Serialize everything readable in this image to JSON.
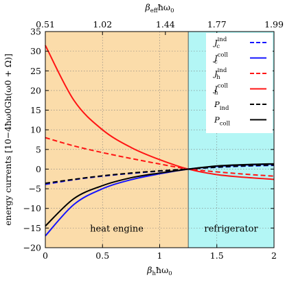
{
  "chart_data": {
    "type": "line",
    "xlabel": "βhħω0",
    "x2label": "βeffħω0",
    "ylabel": "energy currents [10−4ħω0Gh(ω0 + Ω)]",
    "xlim": [
      0,
      2
    ],
    "ylim": [
      -20,
      35
    ],
    "xticks": [
      0,
      0.5,
      1,
      1.5,
      2
    ],
    "xticklabels": [
      "0",
      "0.5",
      "1",
      "1.5",
      "2"
    ],
    "yticks": [
      -20,
      -15,
      -10,
      -5,
      0,
      5,
      10,
      15,
      20,
      25,
      30,
      35
    ],
    "yticklabels": [
      "−20",
      "−15",
      "−10",
      "−5",
      "0",
      "5",
      "10",
      "15",
      "20",
      "25",
      "30",
      "35"
    ],
    "x2ticks": [
      0,
      0.5,
      1.05,
      1.5,
      2
    ],
    "x2ticklabels": [
      "0.51",
      "1.02",
      "1.44",
      "1.77",
      "1.99"
    ],
    "grid": true,
    "legend_position": "top-right",
    "regions": [
      {
        "label": "heat engine",
        "x": [
          0,
          1.25
        ],
        "color": "#fbdcaa"
      },
      {
        "label": "refrigerator",
        "x": [
          1.25,
          2
        ],
        "color": "#b3f6f5"
      }
    ],
    "series": [
      {
        "name": "Jcind",
        "color": "#1414ff",
        "dash": "dashed",
        "x": [
          0,
          0.25,
          0.5,
          0.75,
          1.0,
          1.25,
          1.5,
          1.75,
          2.0
        ],
        "y": [
          -3.9,
          -2.7,
          -1.8,
          -1.1,
          -0.5,
          0,
          0.45,
          0.75,
          0.95
        ]
      },
      {
        "name": "Jccoll",
        "color": "#1414ff",
        "dash": "solid",
        "x": [
          0,
          0.25,
          0.5,
          0.75,
          1.0,
          1.25,
          1.5,
          1.75,
          2.0
        ],
        "y": [
          -17.0,
          -9.0,
          -5.0,
          -2.7,
          -1.2,
          0,
          0.7,
          1.05,
          1.25
        ]
      },
      {
        "name": "Jhind",
        "color": "#ff1414",
        "dash": "dashed",
        "x": [
          0,
          0.25,
          0.5,
          0.75,
          1.0,
          1.25,
          1.5,
          1.75,
          2.0
        ],
        "y": [
          8.0,
          5.9,
          4.2,
          2.7,
          1.3,
          0,
          -0.7,
          -1.3,
          -1.8
        ]
      },
      {
        "name": "Jhcoll",
        "color": "#ff1414",
        "dash": "solid",
        "x": [
          0,
          0.25,
          0.5,
          0.75,
          1.0,
          1.25,
          1.5,
          1.75,
          2.0
        ],
        "y": [
          31.5,
          17.5,
          10.0,
          5.5,
          2.4,
          0,
          -1.4,
          -2.1,
          -2.6
        ]
      },
      {
        "name": "Pind",
        "color": "#000000",
        "dash": "dashed",
        "x": [
          0,
          0.25,
          0.5,
          0.75,
          1.0,
          1.25,
          1.5,
          1.75,
          2.0
        ],
        "y": [
          -3.6,
          -2.6,
          -1.7,
          -1.0,
          -0.45,
          0,
          0.5,
          0.85,
          1.05
        ]
      },
      {
        "name": "Pcoll",
        "color": "#000000",
        "dash": "solid",
        "x": [
          0,
          0.25,
          0.5,
          0.75,
          1.0,
          1.25,
          1.5,
          1.75,
          2.0
        ],
        "y": [
          -14.5,
          -7.5,
          -4.2,
          -2.2,
          -1.0,
          0,
          0.8,
          1.15,
          1.35
        ]
      }
    ],
    "legend": [
      {
        "series": "Jcind",
        "symbol": "J",
        "sub": "c",
        "sup": "ind"
      },
      {
        "series": "Jccoll",
        "symbol": "J",
        "sub": "c",
        "sup": "coll"
      },
      {
        "series": "Jhind",
        "symbol": "J",
        "sub": "h",
        "sup": "ind"
      },
      {
        "series": "Jhcoll",
        "symbol": "J",
        "sub": "h",
        "sup": "coll"
      },
      {
        "series": "Pind",
        "symbol": "P",
        "sub": "ind",
        "sup": ""
      },
      {
        "series": "Pcoll",
        "symbol": "P",
        "sub": "coll",
        "sup": ""
      }
    ]
  }
}
